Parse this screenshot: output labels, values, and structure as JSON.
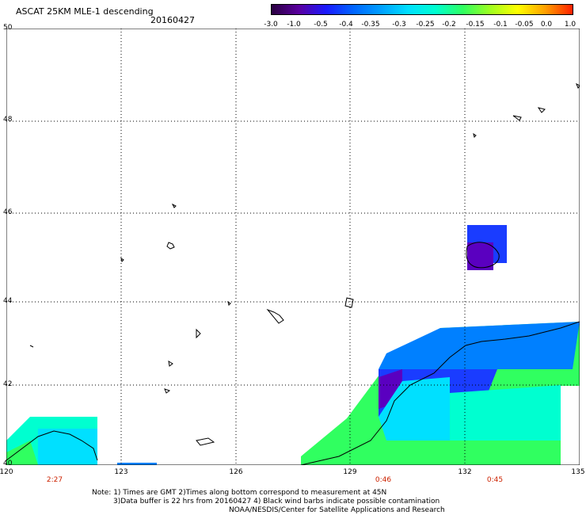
{
  "header": {
    "title": "ASCAT 25KM MLE-1 descending",
    "date": "20160427"
  },
  "colorbar": {
    "ticks": [
      "-3.0",
      "-1.0",
      "-0.5",
      "-0.4",
      "-0.35",
      "-0.3",
      "-0.25",
      "-0.2",
      "-0.15",
      "-0.1",
      "-0.05",
      "0.0",
      "1.0"
    ],
    "colors": [
      "#2a0040",
      "#5a00a0",
      "#1a1aff",
      "#0066ff",
      "#00a0ff",
      "#00e0ff",
      "#00ffd0",
      "#30ff60",
      "#a0ff20",
      "#ffff00",
      "#ffa000",
      "#ff2000"
    ]
  },
  "axes": {
    "lat_labels": [
      "50",
      "48",
      "46",
      "44",
      "42",
      "40"
    ],
    "lon_labels": [
      "120",
      "123",
      "126",
      "129",
      "132",
      "135"
    ]
  },
  "pass_times": [
    "2:27",
    "0:46",
    "0:45"
  ],
  "notes": {
    "line1": "Note: 1) Times are GMT 2)Times along bottom correspond to measurement at 45N",
    "line2": "3)Data buffer is 22 hrs from 20160427 4) Black wind barbs indicate possible contamination",
    "line3": "NOAA/NESDIS/Center for Satellite Applications and Research"
  },
  "colors": {
    "purple": "#5a00c0",
    "blue": "#1a3cff",
    "light_blue": "#0080ff",
    "cyan": "#00e0ff",
    "aqua": "#00ffd0",
    "green": "#30ff60",
    "time_red": "#cc2200"
  }
}
